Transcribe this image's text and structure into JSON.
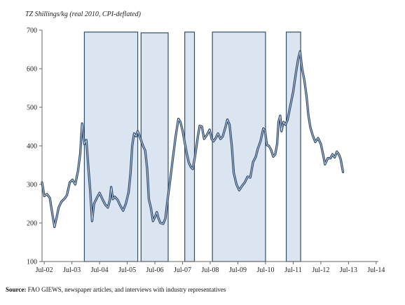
{
  "chart_data": {
    "type": "line",
    "ylabel": "TZ Shillings/kg (real 2010, CPI-deflated)",
    "ylim": [
      100,
      700
    ],
    "yticks": [
      100,
      200,
      300,
      400,
      500,
      600,
      700
    ],
    "xlim": [
      2002.42,
      2014.58
    ],
    "xticks": [
      {
        "label": "Jul-02",
        "x": 2002.5
      },
      {
        "label": "Jul-03",
        "x": 2003.5
      },
      {
        "label": "Jul-04",
        "x": 2004.5
      },
      {
        "label": "Jul-05",
        "x": 2005.5
      },
      {
        "label": "Jul-06",
        "x": 2006.5
      },
      {
        "label": "Jul-07",
        "x": 2007.5
      },
      {
        "label": "Jul-08",
        "x": 2008.5
      },
      {
        "label": "Jul-09",
        "x": 2009.5
      },
      {
        "label": "Jul-10",
        "x": 2010.5
      },
      {
        "label": "Jul-11",
        "x": 2011.5
      },
      {
        "label": "Jul-12",
        "x": 2012.5
      },
      {
        "label": "Jul-13",
        "x": 2013.5
      },
      {
        "label": "Jul-14",
        "x": 2014.5
      }
    ],
    "shaded_periods": [
      {
        "start": 2003.95,
        "end": 2005.88,
        "top": 695
      },
      {
        "start": 2006.0,
        "end": 2006.98,
        "top": 693
      },
      {
        "start": 2007.58,
        "end": 2007.93,
        "top": 695
      },
      {
        "start": 2008.58,
        "end": 2010.5,
        "top": 695
      },
      {
        "start": 2011.25,
        "end": 2011.77,
        "top": 695
      }
    ],
    "series": [
      {
        "points": [
          [
            2002.42,
            305
          ],
          [
            2002.5,
            270
          ],
          [
            2002.6,
            275
          ],
          [
            2002.7,
            265
          ],
          [
            2002.8,
            220
          ],
          [
            2002.87,
            190
          ],
          [
            2002.95,
            215
          ],
          [
            2003.02,
            240
          ],
          [
            2003.12,
            255
          ],
          [
            2003.22,
            262
          ],
          [
            2003.32,
            272
          ],
          [
            2003.42,
            305
          ],
          [
            2003.52,
            312
          ],
          [
            2003.62,
            300
          ],
          [
            2003.72,
            335
          ],
          [
            2003.8,
            380
          ],
          [
            2003.87,
            458
          ],
          [
            2003.95,
            405
          ],
          [
            2004.02,
            415
          ],
          [
            2004.1,
            340
          ],
          [
            2004.17,
            275
          ],
          [
            2004.23,
            205
          ],
          [
            2004.3,
            250
          ],
          [
            2004.4,
            265
          ],
          [
            2004.5,
            278
          ],
          [
            2004.6,
            262
          ],
          [
            2004.7,
            248
          ],
          [
            2004.8,
            240
          ],
          [
            2004.87,
            258
          ],
          [
            2004.92,
            293
          ],
          [
            2004.98,
            262
          ],
          [
            2005.05,
            268
          ],
          [
            2005.15,
            260
          ],
          [
            2005.25,
            245
          ],
          [
            2005.35,
            232
          ],
          [
            2005.45,
            250
          ],
          [
            2005.55,
            280
          ],
          [
            2005.62,
            330
          ],
          [
            2005.68,
            400
          ],
          [
            2005.75,
            432
          ],
          [
            2005.82,
            425
          ],
          [
            2005.88,
            438
          ],
          [
            2005.95,
            425
          ],
          [
            2006.02,
            410
          ],
          [
            2006.08,
            398
          ],
          [
            2006.15,
            388
          ],
          [
            2006.22,
            342
          ],
          [
            2006.28,
            262
          ],
          [
            2006.36,
            238
          ],
          [
            2006.43,
            205
          ],
          [
            2006.5,
            215
          ],
          [
            2006.57,
            228
          ],
          [
            2006.63,
            212
          ],
          [
            2006.7,
            200
          ],
          [
            2006.8,
            198
          ],
          [
            2006.88,
            212
          ],
          [
            2006.95,
            255
          ],
          [
            2007.05,
            310
          ],
          [
            2007.15,
            368
          ],
          [
            2007.25,
            425
          ],
          [
            2007.35,
            470
          ],
          [
            2007.42,
            462
          ],
          [
            2007.5,
            440
          ],
          [
            2007.58,
            408
          ],
          [
            2007.66,
            378
          ],
          [
            2007.72,
            358
          ],
          [
            2007.8,
            345
          ],
          [
            2007.87,
            340
          ],
          [
            2007.95,
            372
          ],
          [
            2008.05,
            422
          ],
          [
            2008.12,
            452
          ],
          [
            2008.2,
            450
          ],
          [
            2008.28,
            418
          ],
          [
            2008.38,
            428
          ],
          [
            2008.48,
            442
          ],
          [
            2008.55,
            418
          ],
          [
            2008.62,
            412
          ],
          [
            2008.7,
            420
          ],
          [
            2008.78,
            432
          ],
          [
            2008.87,
            418
          ],
          [
            2008.95,
            424
          ],
          [
            2009.05,
            448
          ],
          [
            2009.12,
            468
          ],
          [
            2009.2,
            455
          ],
          [
            2009.28,
            400
          ],
          [
            2009.35,
            330
          ],
          [
            2009.45,
            300
          ],
          [
            2009.55,
            285
          ],
          [
            2009.65,
            296
          ],
          [
            2009.75,
            305
          ],
          [
            2009.85,
            320
          ],
          [
            2009.95,
            318
          ],
          [
            2010.05,
            358
          ],
          [
            2010.15,
            372
          ],
          [
            2010.22,
            392
          ],
          [
            2010.32,
            412
          ],
          [
            2010.42,
            445
          ],
          [
            2010.48,
            440
          ],
          [
            2010.55,
            402
          ],
          [
            2010.62,
            400
          ],
          [
            2010.7,
            390
          ],
          [
            2010.78,
            372
          ],
          [
            2010.85,
            378
          ],
          [
            2010.92,
            405
          ],
          [
            2010.97,
            462
          ],
          [
            2011.03,
            478
          ],
          [
            2011.08,
            438
          ],
          [
            2011.15,
            462
          ],
          [
            2011.22,
            455
          ],
          [
            2011.3,
            468
          ],
          [
            2011.4,
            505
          ],
          [
            2011.5,
            540
          ],
          [
            2011.6,
            590
          ],
          [
            2011.68,
            625
          ],
          [
            2011.75,
            645
          ],
          [
            2011.82,
            600
          ],
          [
            2011.9,
            572
          ],
          [
            2011.98,
            530
          ],
          [
            2012.05,
            480
          ],
          [
            2012.12,
            448
          ],
          [
            2012.2,
            428
          ],
          [
            2012.3,
            410
          ],
          [
            2012.4,
            420
          ],
          [
            2012.5,
            405
          ],
          [
            2012.58,
            378
          ],
          [
            2012.65,
            352
          ],
          [
            2012.75,
            368
          ],
          [
            2012.85,
            368
          ],
          [
            2012.92,
            378
          ],
          [
            2013.0,
            370
          ],
          [
            2013.08,
            385
          ],
          [
            2013.15,
            378
          ],
          [
            2013.22,
            365
          ],
          [
            2013.3,
            332
          ]
        ]
      }
    ]
  },
  "source": {
    "label": "Source:",
    "text": " FAO GIEWS, newspaper articles, and interviews with industry representatives"
  }
}
